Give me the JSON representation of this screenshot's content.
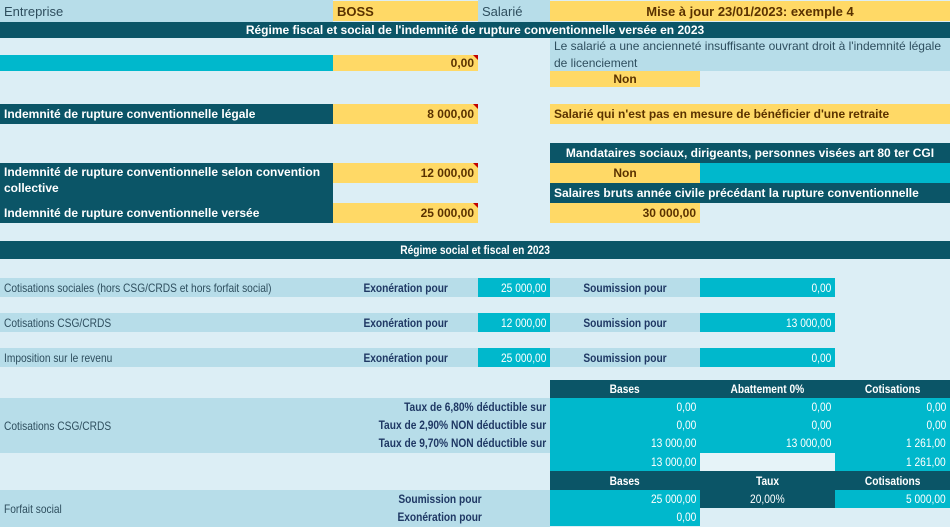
{
  "header": {
    "entreprise_label": "Entreprise",
    "entreprise_value": "BOSS",
    "salarie_label": "Salarié",
    "update_note": "Mise à jour 23/01/2023: exemple 4"
  },
  "section1": {
    "title": "Régime fiscal et social de l'indemnité de rupture conventionnelle versée en 2023",
    "first_value": "0,00",
    "anciennete_question": "Le salarié a une ancienneté insuffisante ouvrant droit à l'indemnité légale de licenciement",
    "anciennete_answer": "Non",
    "legale_label": "Indemnité de rupture conventionnelle légale",
    "legale_value": "8 000,00",
    "retraite_option": "Salarié qui n'est pas en mesure de bénéficier d'une retraite",
    "mandataires_label": "Mandataires sociaux, dirigeants, personnes visées art 80 ter CGI",
    "mandataires_answer": "Non",
    "convention_label": "Indemnité de rupture conventionnelle selon convention collective",
    "convention_value": "12 000,00",
    "salaires_label": "Salaires bruts année civile précédant la rupture conventionnelle",
    "versee_label": "Indemnité de rupture conventionnelle versée",
    "versee_value": "25 000,00",
    "salaires_value": "30 000,00"
  },
  "section2": {
    "title": "Régime social et fiscal en 2023",
    "rows": [
      {
        "label": "Cotisations sociales (hors CSG/CRDS et hors forfait social)",
        "exo_label": "Exonération pour",
        "exo_value": "25 000,00",
        "sou_label": "Soumission pour",
        "sou_value": "0,00"
      },
      {
        "label": "Cotisations CSG/CRDS",
        "exo_label": "Exonération pour",
        "exo_value": "12 000,00",
        "sou_label": "Soumission pour",
        "sou_value": "13 000,00"
      },
      {
        "label": "Imposition sur le revenu",
        "exo_label": "Exonération pour",
        "exo_value": "25 000,00",
        "sou_label": "Soumission pour",
        "sou_value": "0,00"
      }
    ]
  },
  "csg": {
    "label": "Cotisations CSG/CRDS",
    "headers": [
      "Bases",
      "Abattement 0%",
      "Cotisations"
    ],
    "rows": [
      {
        "label": "Taux de 6,80% déductible sur",
        "base": "0,00",
        "abattement": "0,00",
        "cotisation": "0,00"
      },
      {
        "label": "Taux de 2,90% NON déductible sur",
        "base": "0,00",
        "abattement": "0,00",
        "cotisation": "0,00"
      },
      {
        "label": "Taux de 9,70% NON déductible sur",
        "base": "13 000,00",
        "abattement": "13 000,00",
        "cotisation": "1 261,00"
      }
    ],
    "total_base": "13 000,00",
    "total_cotisation": "1 261,00"
  },
  "forfait": {
    "label": "Forfait social",
    "headers": [
      "Bases",
      "Taux",
      "Cotisations"
    ],
    "soumission_label": "Soumission pour",
    "soumission_base": "25 000,00",
    "taux": "20,00%",
    "cotisation": "5 000,00",
    "exoneration_label": "Exonération pour",
    "exoneration_base": "0,00"
  },
  "colors": {
    "dark_teal": "#0B5567",
    "cyan": "#00B8CC",
    "yellow": "#FFD966",
    "light_blue": "#B7DDE9",
    "background": "#DCEEF5",
    "comment_marker": "#C00000"
  }
}
